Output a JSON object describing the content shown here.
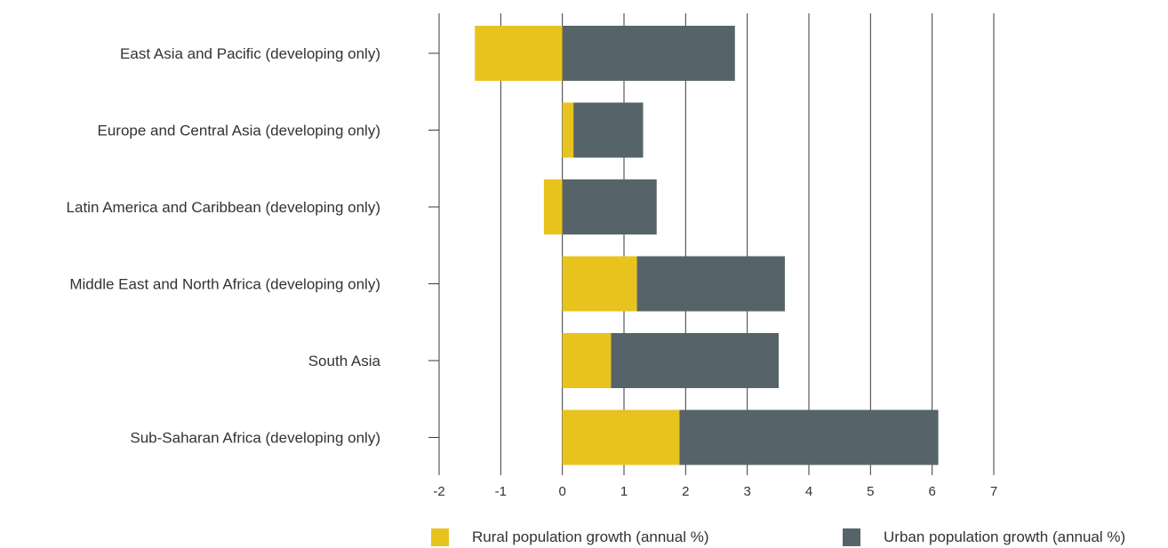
{
  "chart_data": {
    "type": "bar",
    "orientation": "horizontal",
    "stacked": true,
    "title": "",
    "xlabel": "",
    "ylabel": "",
    "xlim": [
      -2,
      7
    ],
    "x_ticks": [
      "-2",
      "-1",
      "0",
      "1",
      "2",
      "3",
      "4",
      "5",
      "6",
      "7"
    ],
    "grid": "vertical",
    "legend_position": "bottom",
    "categories": [
      "East Asia and Pacific (developing only)",
      "Europe and Central Asia (developing only)",
      "Latin America and Caribbean (developing only)",
      "Middle East and North Africa (developing only)",
      "South Asia",
      "Sub-Saharan Africa (developing only)"
    ],
    "series": [
      {
        "name": "Rural population growth (annual %)",
        "color": "#E9C31D",
        "values": [
          -1.42,
          0.18,
          -0.3,
          1.21,
          0.79,
          1.9
        ]
      },
      {
        "name": "Urban population growth (annual %)",
        "color": "#56646A",
        "values": [
          2.8,
          1.13,
          1.53,
          2.4,
          2.72,
          4.2
        ]
      }
    ]
  }
}
